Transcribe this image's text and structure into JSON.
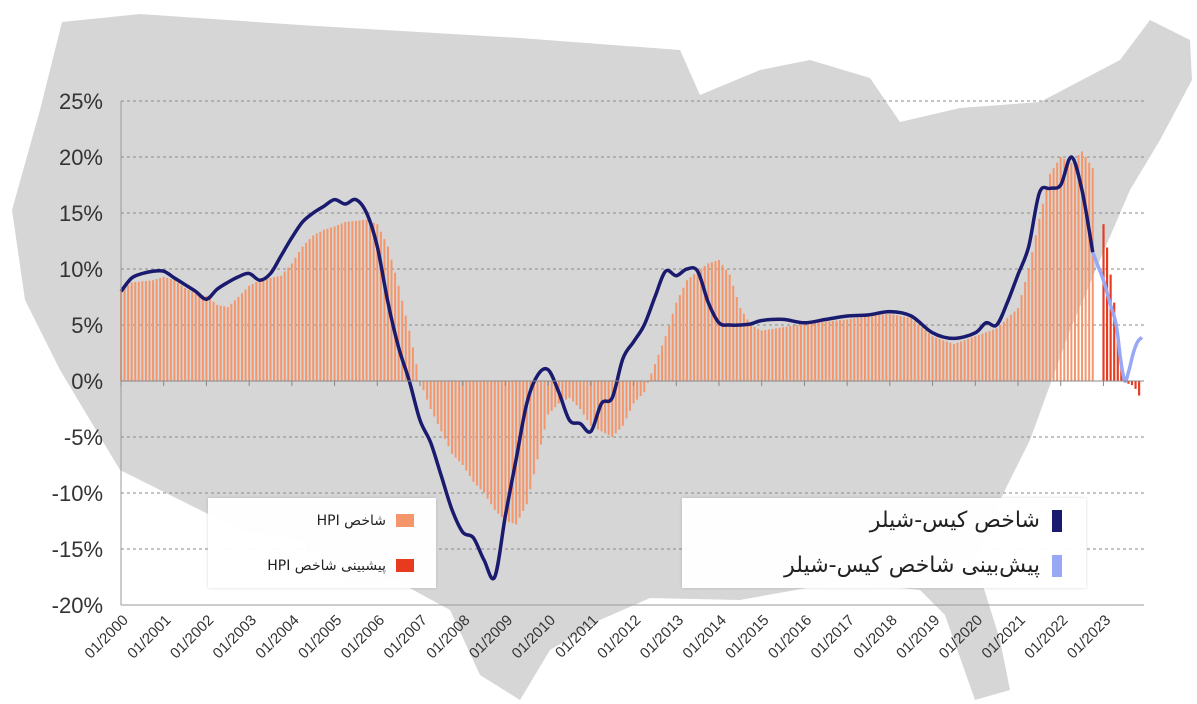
{
  "colors": {
    "hpi": "#f4956a",
    "hpi_forecast": "#e83a1f",
    "case_shiller": "#1a1a6e",
    "case_shiller_forecast": "#98a8f5",
    "map": "#d6d6d6",
    "grid": "#8a8a8a"
  },
  "legend_left": {
    "hpi_label": "شاخص HPI",
    "hpi_forecast_label": "پیشبینی شاخص HPI"
  },
  "legend_right": {
    "cs_label": "شاخص کیس-شیلر",
    "cs_forecast_label": "پیش‌بینی شاخص کیس-شیلر"
  },
  "chart_data": {
    "type": "bar",
    "background": "map of the United States (light gray)",
    "grid": true,
    "ylim": [
      -20,
      25
    ],
    "yticks": [
      "25%",
      "20%",
      "15%",
      "10%",
      "5%",
      "0%",
      "-5%",
      "-10%",
      "-15%",
      "-20%"
    ],
    "xlim": [
      2000.0,
      2023.95
    ],
    "xticks": [
      "01/2000",
      "01/2001",
      "01/2002",
      "01/2003",
      "01/2004",
      "01/2005",
      "01/2006",
      "01/2007",
      "01/2008",
      "01/2009",
      "01/2010",
      "01/2011",
      "01/2012",
      "01/2013",
      "01/2014",
      "01/2015",
      "01/2016",
      "01/2017",
      "01/2018",
      "01/2019",
      "01/2020",
      "01/2021",
      "01/2022",
      "01/2023"
    ],
    "legend_placement": "bottom (two boxes)",
    "series": [
      {
        "name": "شاخص HPI",
        "type": "bar",
        "x": [
          2000.0,
          2000.25,
          2000.5,
          2000.75,
          2001.0,
          2001.25,
          2001.5,
          2001.75,
          2002.0,
          2002.25,
          2002.5,
          2002.75,
          2003.0,
          2003.25,
          2003.5,
          2003.75,
          2004.0,
          2004.25,
          2004.5,
          2004.75,
          2005.0,
          2005.25,
          2005.5,
          2005.75,
          2006.0,
          2006.25,
          2006.5,
          2006.75,
          2007.0,
          2007.25,
          2007.5,
          2007.75,
          2008.0,
          2008.25,
          2008.5,
          2008.75,
          2009.0,
          2009.25,
          2009.5,
          2009.75,
          2010.0,
          2010.25,
          2010.5,
          2010.75,
          2011.0,
          2011.25,
          2011.5,
          2011.75,
          2012.0,
          2012.25,
          2012.5,
          2012.75,
          2013.0,
          2013.25,
          2013.5,
          2013.75,
          2014.0,
          2014.25,
          2014.5,
          2014.75,
          2015.0,
          2015.5,
          2016.0,
          2016.5,
          2017.0,
          2017.5,
          2018.0,
          2018.5,
          2019.0,
          2019.5,
          2020.0,
          2020.5,
          2021.0,
          2021.25,
          2021.5,
          2021.75,
          2022.0,
          2022.25,
          2022.5,
          2022.75
        ],
        "values": [
          8.0,
          8.8,
          8.9,
          9.0,
          9.3,
          9.0,
          8.3,
          7.8,
          7.6,
          6.8,
          6.6,
          7.5,
          8.5,
          9.0,
          9.2,
          9.4,
          10.5,
          12.0,
          13.0,
          13.5,
          13.8,
          14.2,
          14.3,
          14.4,
          14.0,
          12.0,
          8.5,
          4.5,
          0.0,
          -2.5,
          -4.5,
          -6.5,
          -7.5,
          -9.0,
          -10.0,
          -11.5,
          -12.5,
          -12.8,
          -11.0,
          -7.0,
          -3.0,
          -2.0,
          -1.5,
          -2.5,
          -4.0,
          -4.5,
          -5.0,
          -4.0,
          -2.0,
          -1.0,
          1.5,
          4.0,
          7.0,
          9.0,
          9.8,
          10.5,
          10.8,
          9.5,
          6.5,
          5.0,
          4.5,
          4.8,
          5.1,
          5.3,
          5.5,
          5.8,
          6.0,
          5.6,
          4.0,
          3.3,
          4.0,
          4.7,
          6.5,
          10.0,
          14.5,
          18.5,
          20.0,
          19.5,
          20.5,
          19.0
        ]
      },
      {
        "name": "پیشبینی شاخص HPI",
        "type": "bar",
        "x": [
          2023.0,
          2023.1,
          2023.2,
          2023.3,
          2023.4,
          2023.5,
          2023.6,
          2023.7,
          2023.8,
          2023.9
        ],
        "values": [
          14.0,
          11.5,
          8.5,
          5.5,
          2.0,
          0.0,
          -0.3,
          -0.4,
          -1.0,
          -1.9
        ]
      },
      {
        "name": "شاخص کیس-شیلر",
        "type": "line",
        "x": [
          2000.0,
          2000.25,
          2000.5,
          2000.75,
          2001.0,
          2001.25,
          2001.5,
          2001.75,
          2002.0,
          2002.25,
          2002.5,
          2002.75,
          2003.0,
          2003.25,
          2003.5,
          2003.75,
          2004.0,
          2004.25,
          2004.5,
          2004.75,
          2005.0,
          2005.25,
          2005.5,
          2005.75,
          2006.0,
          2006.25,
          2006.5,
          2006.75,
          2007.0,
          2007.25,
          2007.5,
          2007.75,
          2008.0,
          2008.25,
          2008.5,
          2008.75,
          2009.0,
          2009.25,
          2009.5,
          2009.75,
          2010.0,
          2010.25,
          2010.5,
          2010.75,
          2011.0,
          2011.25,
          2011.5,
          2011.75,
          2012.0,
          2012.25,
          2012.5,
          2012.75,
          2013.0,
          2013.25,
          2013.5,
          2013.75,
          2014.0,
          2014.25,
          2014.5,
          2014.75,
          2015.0,
          2015.5,
          2016.0,
          2016.5,
          2017.0,
          2017.5,
          2018.0,
          2018.5,
          2019.0,
          2019.5,
          2020.0,
          2020.25,
          2020.5,
          2020.75,
          2021.0,
          2021.25,
          2021.5,
          2021.75,
          2022.0,
          2022.25,
          2022.5,
          2022.75
        ],
        "values": [
          8.0,
          9.2,
          9.6,
          9.8,
          9.8,
          9.2,
          8.6,
          8.0,
          7.3,
          8.2,
          8.8,
          9.3,
          9.6,
          9.0,
          9.6,
          11.2,
          12.8,
          14.2,
          15.0,
          15.6,
          16.2,
          15.8,
          16.2,
          15.0,
          12.0,
          7.0,
          3.0,
          0.0,
          -3.5,
          -5.5,
          -8.5,
          -11.5,
          -13.5,
          -14.0,
          -16.0,
          -17.5,
          -12.0,
          -7.0,
          -2.0,
          0.5,
          1.0,
          -1.0,
          -3.5,
          -3.8,
          -4.5,
          -2.0,
          -1.5,
          2.0,
          3.5,
          5.0,
          7.5,
          9.8,
          9.4,
          10.0,
          9.8,
          7.0,
          5.2,
          5.0,
          5.0,
          5.1,
          5.4,
          5.5,
          5.2,
          5.5,
          5.8,
          5.9,
          6.2,
          5.8,
          4.3,
          3.8,
          4.3,
          5.2,
          5.0,
          7.0,
          9.5,
          12.0,
          16.8,
          17.2,
          17.5,
          20.0,
          17.0,
          11.5
        ]
      },
      {
        "name": "پیش‌بینی شاخص کیس-شیلر",
        "type": "line",
        "x": [
          2022.75,
          2022.85,
          2023.0,
          2023.15,
          2023.3,
          2023.4,
          2023.5,
          2023.6,
          2023.7,
          2023.8,
          2023.9
        ],
        "values": [
          11.5,
          10.5,
          9.0,
          7.0,
          5.0,
          2.0,
          0.0,
          1.0,
          2.5,
          3.5,
          3.9
        ]
      }
    ]
  }
}
